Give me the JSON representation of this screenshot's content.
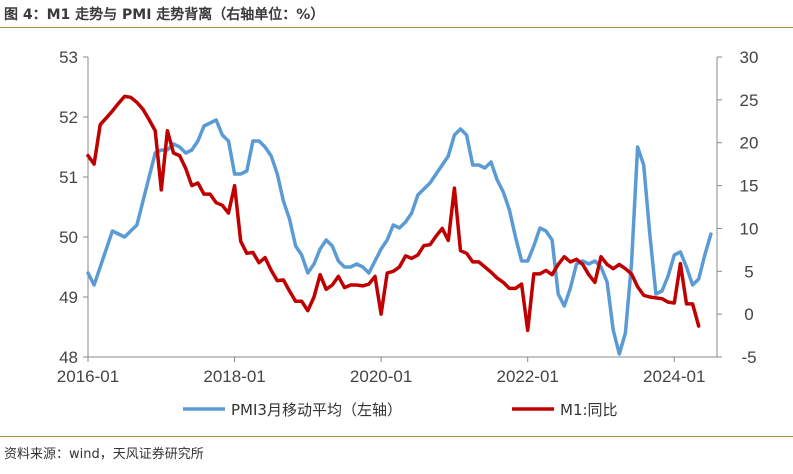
{
  "header": {
    "title": "图 4：M1 走势与 PMI 走势背离（右轴单位：%）"
  },
  "footer": {
    "source": "资料来源：wind，天风证券研究所"
  },
  "chart_data": {
    "type": "line",
    "colors": {
      "pmi": "#5b9bd5",
      "m1": "#c00000",
      "axis": "#888888"
    },
    "x_range": [
      "2016-01",
      "2024-08"
    ],
    "x_tick_labels": [
      "2016-01",
      "2018-01",
      "2020-01",
      "2022-01",
      "2024-01"
    ],
    "left_axis": {
      "ylim": [
        48,
        53
      ],
      "ticks": [
        "48",
        "49",
        "50",
        "51",
        "52",
        "53"
      ]
    },
    "right_axis": {
      "ylim": [
        -5,
        30
      ],
      "ticks": [
        "-5",
        "0",
        "5",
        "10",
        "15",
        "20",
        "25",
        "30"
      ]
    },
    "legend_position": "bottom",
    "series": [
      {
        "name": "PMI3月移动平均（左轴）",
        "axis": "left",
        "start": "2016-01",
        "values": [
          49.4,
          49.2,
          49.5,
          49.8,
          50.1,
          50.05,
          50.0,
          50.1,
          50.2,
          50.6,
          51.0,
          51.4,
          51.45,
          51.45,
          51.55,
          51.5,
          51.4,
          51.45,
          51.6,
          51.85,
          51.9,
          51.95,
          51.7,
          51.6,
          51.05,
          51.05,
          51.1,
          51.6,
          51.6,
          51.5,
          51.35,
          51.05,
          50.6,
          50.3,
          49.85,
          49.7,
          49.4,
          49.55,
          49.8,
          49.95,
          49.85,
          49.6,
          49.5,
          49.5,
          49.55,
          49.5,
          49.4,
          49.6,
          49.8,
          49.95,
          50.2,
          50.15,
          50.25,
          50.4,
          50.7,
          50.8,
          50.9,
          51.05,
          51.2,
          51.35,
          51.7,
          51.8,
          51.7,
          51.2,
          51.2,
          51.15,
          51.25,
          50.95,
          50.75,
          50.45,
          50.0,
          49.6,
          49.6,
          49.85,
          50.15,
          50.1,
          49.95,
          49.05,
          48.85,
          49.15,
          49.55,
          49.6,
          49.55,
          49.6,
          49.5,
          49.25,
          48.45,
          48.05,
          48.4,
          49.55,
          51.5,
          51.2,
          50.05,
          49.05,
          49.1,
          49.35,
          49.7,
          49.75,
          49.5,
          49.2,
          49.3,
          49.7,
          50.05
        ]
      },
      {
        "name": "M1:同比",
        "axis": "right",
        "start": "2016-01",
        "values": [
          18.5,
          17.5,
          22.1,
          22.9,
          23.7,
          24.6,
          25.4,
          25.3,
          24.7,
          23.9,
          22.7,
          21.4,
          14.5,
          21.4,
          18.8,
          18.5,
          17.0,
          15.0,
          15.3,
          14.0,
          14.0,
          13.0,
          12.7,
          11.8,
          15.0,
          8.5,
          7.1,
          7.2,
          6.0,
          6.6,
          5.1,
          3.9,
          4.0,
          2.7,
          1.5,
          1.5,
          0.4,
          2.0,
          4.6,
          2.9,
          3.4,
          4.4,
          3.1,
          3.4,
          3.4,
          3.3,
          3.5,
          4.4,
          0.0,
          4.8,
          5.0,
          5.5,
          6.8,
          6.5,
          6.9,
          8.0,
          8.1,
          9.1,
          10.0,
          8.6,
          14.7,
          7.4,
          7.1,
          6.1,
          6.1,
          5.5,
          4.9,
          4.2,
          3.7,
          3.0,
          3.0,
          3.5,
          -1.9,
          4.7,
          4.7,
          5.1,
          4.6,
          5.8,
          6.7,
          6.1,
          6.4,
          5.8,
          4.6,
          3.7,
          6.7,
          5.8,
          5.3,
          5.8,
          5.3,
          4.7,
          3.2,
          2.2,
          2.0,
          1.9,
          1.8,
          1.4,
          1.3,
          5.9,
          1.2,
          1.2,
          -1.4
        ]
      }
    ]
  }
}
